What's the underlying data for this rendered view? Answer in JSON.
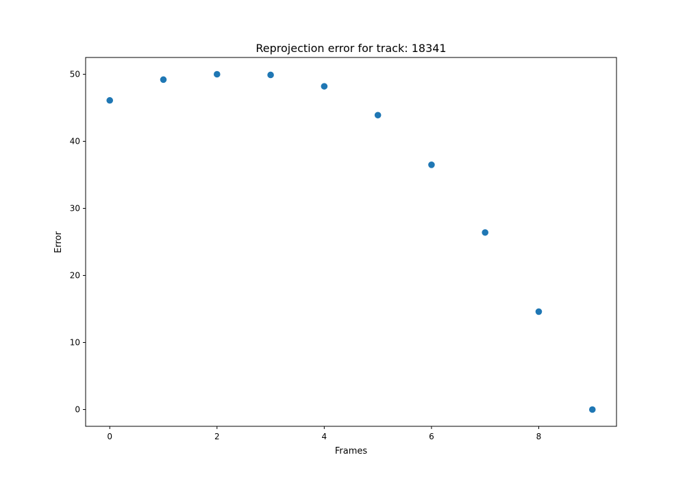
{
  "chart_data": {
    "type": "scatter",
    "title": "Reprojection error for track: 18341",
    "xlabel": "Frames",
    "ylabel": "Error",
    "x": [
      0,
      1,
      2,
      3,
      4,
      5,
      6,
      7,
      8,
      9
    ],
    "y": [
      46.1,
      49.2,
      50.0,
      49.9,
      48.2,
      43.9,
      36.5,
      26.4,
      14.6,
      0.0
    ],
    "xlim": [
      -0.45,
      9.45
    ],
    "ylim": [
      -2.5,
      52.5
    ],
    "xticks": [
      0,
      2,
      4,
      6,
      8
    ],
    "yticks": [
      0,
      10,
      20,
      30,
      40,
      50
    ],
    "grid": false,
    "marker_color": "#1f77b4"
  }
}
